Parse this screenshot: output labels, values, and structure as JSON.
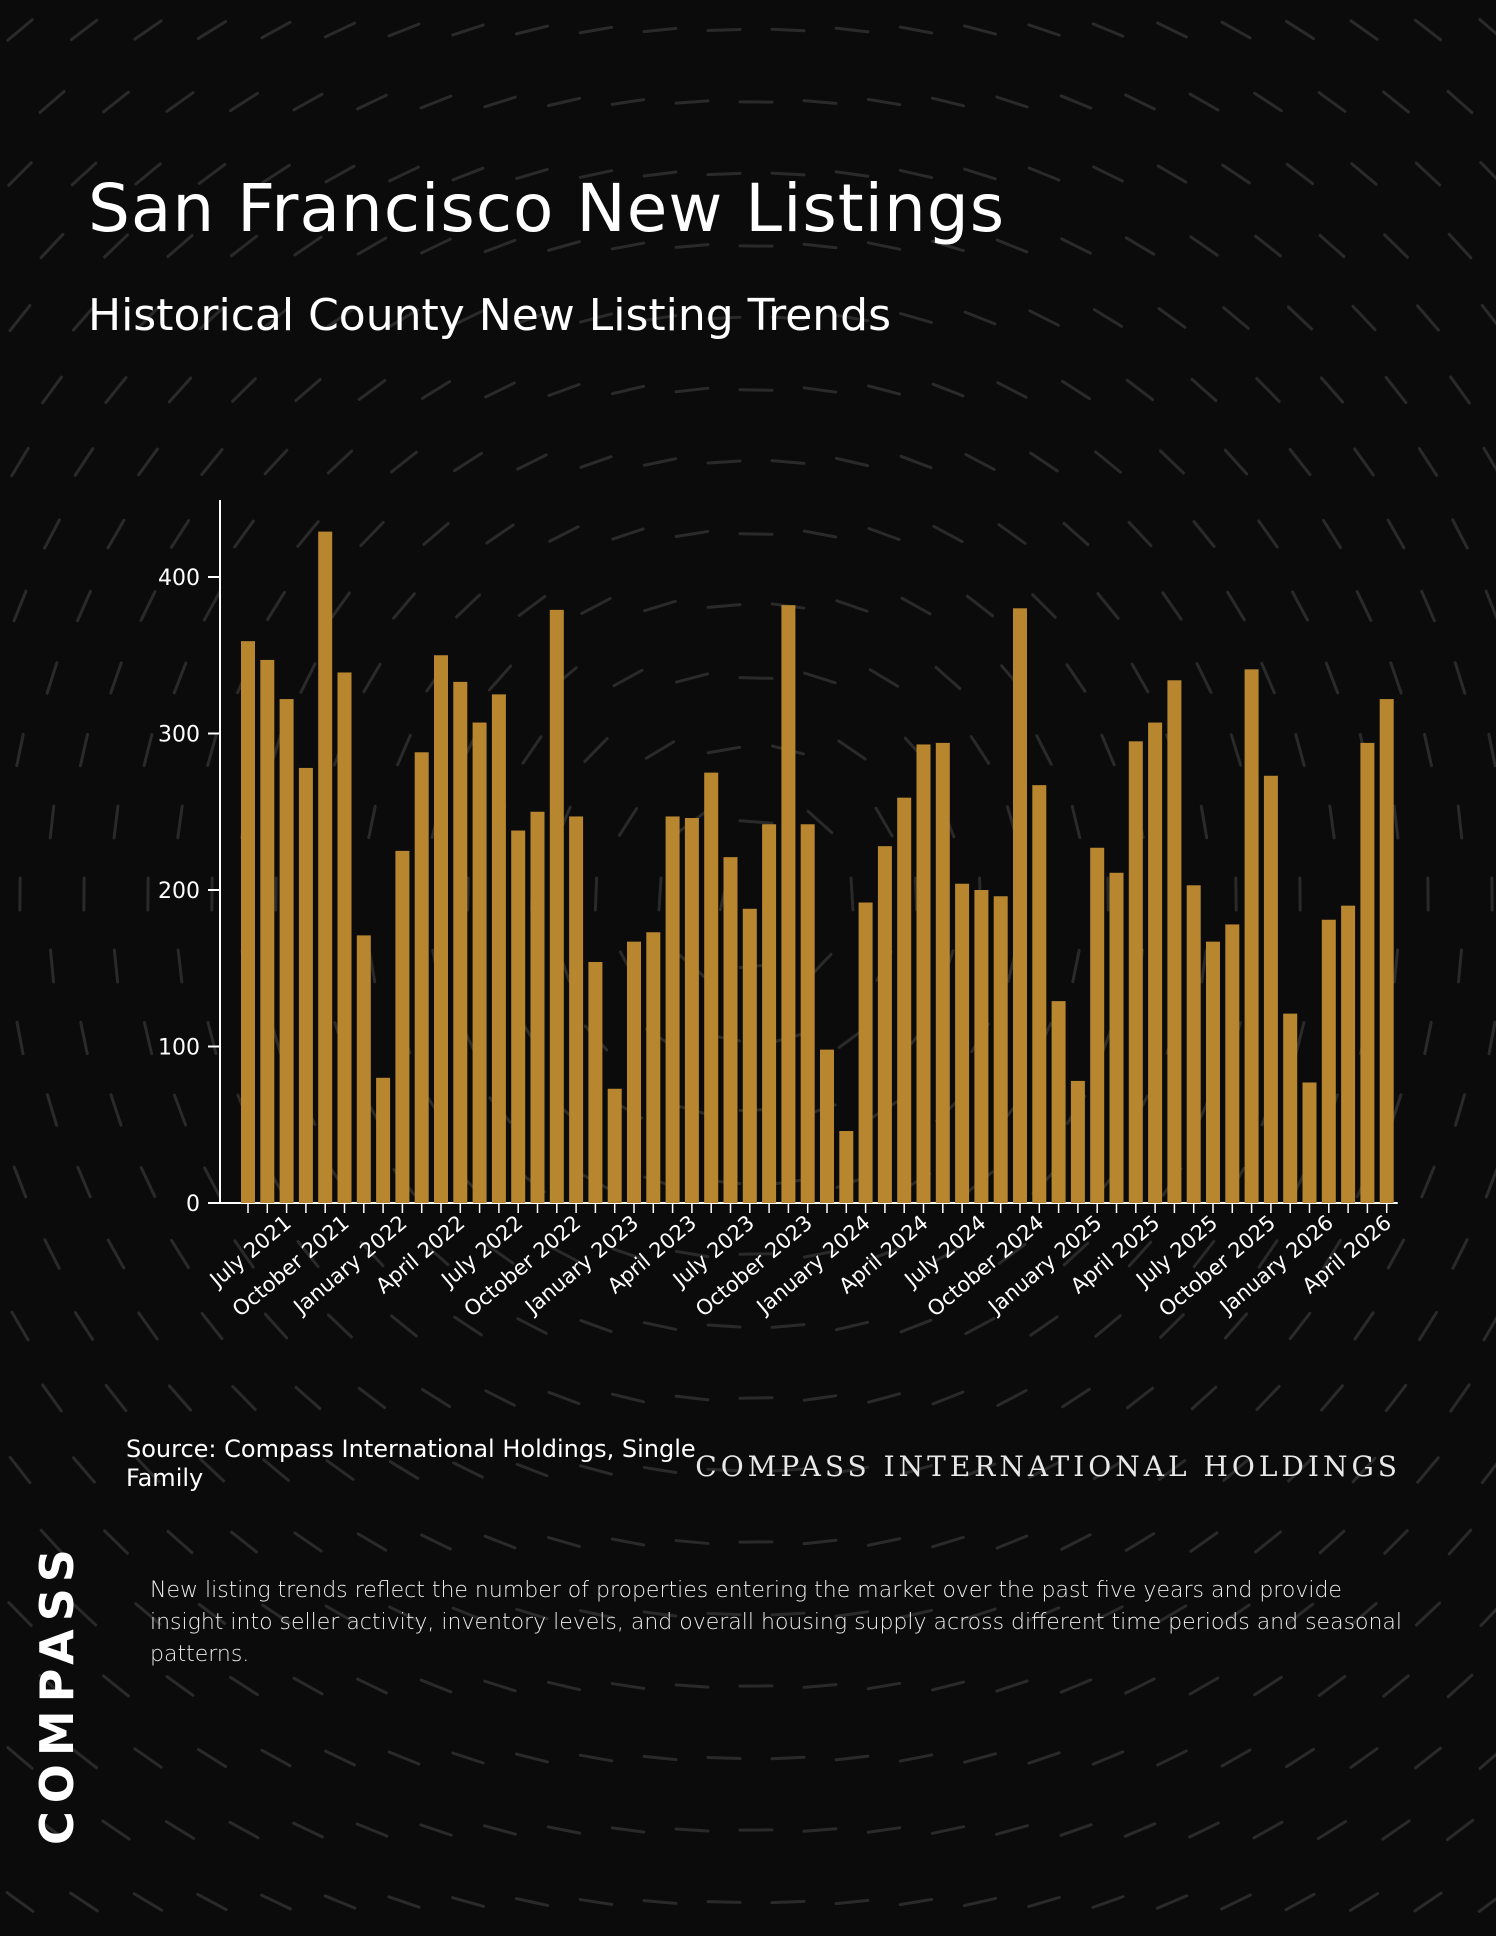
{
  "header": {
    "title": "San Francisco New Listings",
    "subtitle": "Historical County New Listing Trends"
  },
  "footer": {
    "source": "Source: Compass International Holdings, Single Family",
    "brand_text": "COMPASS INTERNATIONAL HOLDINGS",
    "description": "New listing trends reflect the number of properties entering the market over the past five years and provide insight into seller activity, inventory levels, and overall housing supply across different time periods and seasonal patterns.",
    "logo": "COMPASS"
  },
  "colors": {
    "background": "#0b0b0b",
    "bar": "#b8862e",
    "text": "#ffffff"
  },
  "chart_data": {
    "type": "bar",
    "categories": [
      "2021-05",
      "2021-06",
      "2021-07",
      "2021-08",
      "2021-09",
      "2021-10",
      "2021-11",
      "2021-12",
      "2022-01",
      "2022-02",
      "2022-03",
      "2022-04",
      "2022-05",
      "2022-06",
      "2022-07",
      "2022-08",
      "2022-09",
      "2022-10",
      "2022-11",
      "2022-12",
      "2023-01",
      "2023-02",
      "2023-03",
      "2023-04",
      "2023-05",
      "2023-06",
      "2023-07",
      "2023-08",
      "2023-09",
      "2023-10",
      "2023-11",
      "2023-12",
      "2024-01",
      "2024-02",
      "2024-03",
      "2024-04",
      "2024-05",
      "2024-06",
      "2024-07",
      "2024-08",
      "2024-09",
      "2024-10",
      "2024-11",
      "2024-12",
      "2025-01",
      "2025-02",
      "2025-03",
      "2025-04",
      "2025-05",
      "2025-06",
      "2025-07",
      "2025-08",
      "2025-09",
      "2025-10",
      "2025-11",
      "2025-12",
      "2026-01",
      "2026-02",
      "2026-03",
      "2026-04"
    ],
    "values": [
      359,
      347,
      322,
      278,
      429,
      339,
      171,
      80,
      225,
      288,
      350,
      333,
      307,
      325,
      238,
      250,
      379,
      247,
      154,
      73,
      167,
      173,
      247,
      246,
      275,
      221,
      188,
      242,
      382,
      242,
      98,
      46,
      192,
      228,
      259,
      293,
      294,
      204,
      200,
      196,
      380,
      267,
      129,
      78,
      227,
      211,
      295,
      307,
      334,
      203,
      167,
      178,
      341,
      273,
      121,
      77,
      181,
      190,
      294,
      322
    ],
    "tick_labels": [
      "July 2021",
      "October 2021",
      "January 2022",
      "April 2022",
      "July 2022",
      "October 2022",
      "January 2023",
      "April 2023",
      "July 2023",
      "October 2023",
      "January 2024",
      "April 2024",
      "July 2024",
      "October 2024",
      "January 2025",
      "April 2025",
      "July 2025",
      "October 2025",
      "January 2026",
      "April 2026"
    ],
    "yticks": [
      0,
      100,
      200,
      300,
      400
    ],
    "ylim": [
      0,
      450
    ],
    "xlabel": "",
    "ylabel": "",
    "grid": false,
    "legend": "none"
  }
}
